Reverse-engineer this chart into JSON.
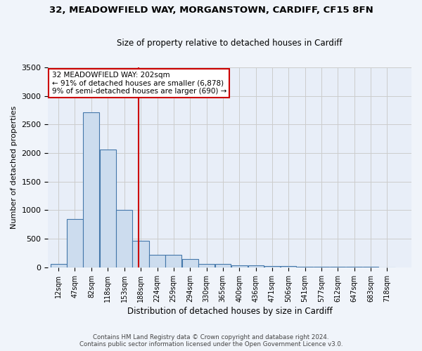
{
  "title1": "32, MEADOWFIELD WAY, MORGANSTOWN, CARDIFF, CF15 8FN",
  "title2": "Size of property relative to detached houses in Cardiff",
  "xlabel": "Distribution of detached houses by size in Cardiff",
  "ylabel": "Number of detached properties",
  "bar_color": "#ccdcee",
  "bar_edge_color": "#4477aa",
  "bin_labels": [
    "12sqm",
    "47sqm",
    "82sqm",
    "118sqm",
    "153sqm",
    "188sqm",
    "224sqm",
    "259sqm",
    "294sqm",
    "330sqm",
    "365sqm",
    "400sqm",
    "436sqm",
    "471sqm",
    "506sqm",
    "541sqm",
    "577sqm",
    "612sqm",
    "647sqm",
    "683sqm",
    "718sqm"
  ],
  "bar_heights": [
    60,
    850,
    2720,
    2060,
    1010,
    460,
    220,
    220,
    150,
    60,
    55,
    40,
    30,
    25,
    20,
    15,
    10,
    8,
    5,
    5,
    3
  ],
  "bin_edges": [
    12,
    47,
    82,
    118,
    153,
    188,
    224,
    259,
    294,
    330,
    365,
    400,
    436,
    471,
    506,
    541,
    577,
    612,
    647,
    683,
    718,
    753
  ],
  "property_size": 202,
  "red_line_color": "#cc0000",
  "annotation_text_line1": "32 MEADOWFIELD WAY: 202sqm",
  "annotation_text_line2": "← 91% of detached houses are smaller (6,878)",
  "annotation_text_line3": "9% of semi-detached houses are larger (690) →",
  "annotation_box_color": "#ffffff",
  "annotation_box_edge": "#cc0000",
  "ylim": [
    0,
    3500
  ],
  "grid_color": "#cccccc",
  "bg_color": "#e8eef8",
  "fig_bg_color": "#f0f4fa",
  "footer1": "Contains HM Land Registry data © Crown copyright and database right 2024.",
  "footer2": "Contains public sector information licensed under the Open Government Licence v3.0."
}
